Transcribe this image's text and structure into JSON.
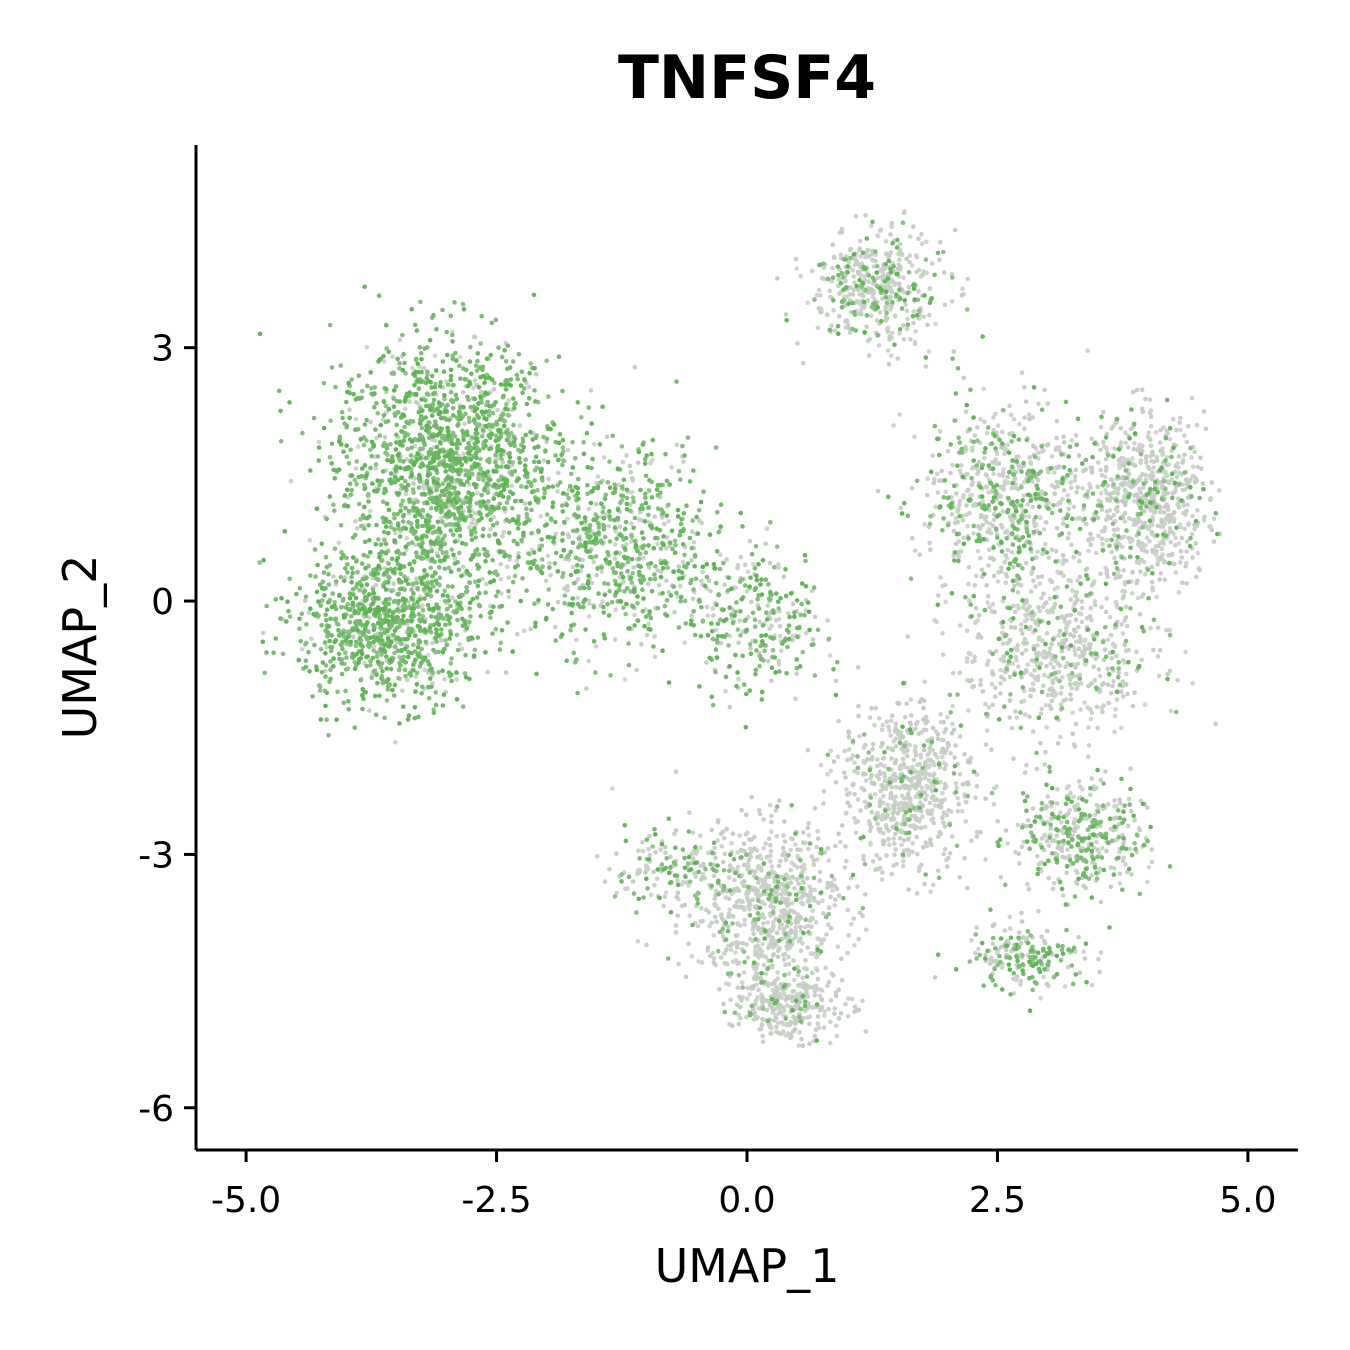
{
  "chart_data": {
    "type": "scatter",
    "title": "TNFSF4",
    "xlabel": "UMAP_1",
    "ylabel": "UMAP_2",
    "xlim": [
      -5.5,
      5.5
    ],
    "ylim": [
      -6.5,
      5.4
    ],
    "xticks": [
      -5.0,
      -2.5,
      0.0,
      2.5,
      5.0
    ],
    "xtick_labels": [
      "-5.0",
      "-2.5",
      "0.0",
      "2.5",
      "5.0"
    ],
    "yticks": [
      3,
      0,
      -3,
      -6
    ],
    "ytick_labels": [
      "3",
      "0",
      "-3",
      "-6"
    ],
    "grid": false,
    "legend": "none",
    "colors": {
      "low": "#d3d3d3",
      "high": "#5bb450"
    },
    "expression_scale": "0 (grey) to 1 (green)",
    "clusters": [
      {
        "x": -3.0,
        "y": 1.6,
        "sx": 1.0,
        "sy": 1.35,
        "n": 1700,
        "expr": 0.85
      },
      {
        "x": -3.6,
        "y": -0.3,
        "sx": 0.8,
        "sy": 0.85,
        "n": 900,
        "expr": 0.85
      },
      {
        "x": -1.3,
        "y": 0.6,
        "sx": 0.9,
        "sy": 1.1,
        "n": 700,
        "expr": 0.7
      },
      {
        "x": 0.1,
        "y": -0.2,
        "sx": 0.6,
        "sy": 0.8,
        "n": 300,
        "expr": 0.6
      },
      {
        "x": 1.3,
        "y": 3.7,
        "sx": 0.6,
        "sy": 0.6,
        "n": 450,
        "expr": 0.25
      },
      {
        "x": 2.6,
        "y": 1.2,
        "sx": 0.8,
        "sy": 1.0,
        "n": 700,
        "expr": 0.35
      },
      {
        "x": 4.0,
        "y": 1.2,
        "sx": 0.55,
        "sy": 0.9,
        "n": 650,
        "expr": 0.15
      },
      {
        "x": 3.1,
        "y": -0.6,
        "sx": 0.9,
        "sy": 0.9,
        "n": 600,
        "expr": 0.15
      },
      {
        "x": 1.6,
        "y": -2.2,
        "sx": 0.6,
        "sy": 0.9,
        "n": 650,
        "expr": 0.1
      },
      {
        "x": 0.2,
        "y": -3.6,
        "sx": 0.7,
        "sy": 0.9,
        "n": 750,
        "expr": 0.12
      },
      {
        "x": 0.4,
        "y": -4.8,
        "sx": 0.5,
        "sy": 0.35,
        "n": 300,
        "expr": 0.1
      },
      {
        "x": 3.3,
        "y": -2.8,
        "sx": 0.6,
        "sy": 0.6,
        "n": 400,
        "expr": 0.4
      },
      {
        "x": 2.8,
        "y": -4.2,
        "sx": 0.6,
        "sy": 0.35,
        "n": 200,
        "expr": 0.45
      },
      {
        "x": -0.8,
        "y": -3.2,
        "sx": 0.5,
        "sy": 0.5,
        "n": 150,
        "expr": 0.4
      }
    ]
  }
}
